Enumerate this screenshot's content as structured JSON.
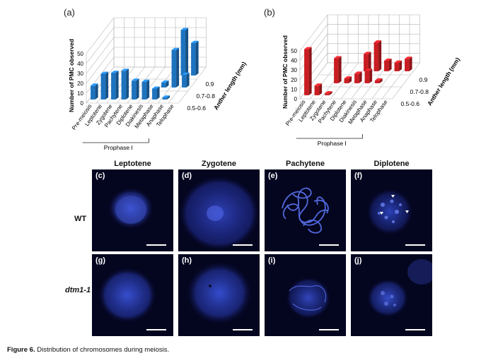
{
  "chart_data": [
    {
      "panel": "(a)",
      "type": "bar",
      "ylabel": "Number of PMC observed",
      "zlabel": "Anther length (mm)",
      "ylim": [
        0,
        50
      ],
      "yticks": [
        "0",
        "10",
        "20",
        "30",
        "40",
        "50"
      ],
      "categories": [
        "Pre-meiosis",
        "Leptotene",
        "Zygotene",
        "Pachytene",
        "Diplotene",
        "Diakinesis",
        "Metaphase",
        "Anaphase",
        "Telophase"
      ],
      "group_label": "Prophase I",
      "series": [
        {
          "name": "0.5-0.6",
          "values": [
            14,
            26,
            27,
            29,
            19,
            18,
            11,
            2,
            0
          ]
        },
        {
          "name": "0.7-0.8",
          "values": [
            0,
            0,
            0,
            0,
            0,
            0,
            5,
            38,
            13
          ]
        },
        {
          "name": "0.9",
          "values": [
            0,
            0,
            0,
            0,
            0,
            0,
            0,
            46,
            33
          ]
        }
      ]
    },
    {
      "panel": "(b)",
      "type": "bar",
      "ylabel": "Number of PMC observed",
      "zlabel": "Anther length (mm)",
      "ylim": [
        0,
        50
      ],
      "yticks": [
        "0",
        "10",
        "20",
        "30",
        "40",
        "50"
      ],
      "categories": [
        "Pre-meiosis",
        "Leptotene",
        "Zygotene",
        "Pachytene",
        "Diplotene",
        "Diakinesis",
        "Metaphase",
        "Anaphase",
        "Telophase"
      ],
      "group_label": "Prophase I",
      "series": [
        {
          "name": "0.5-0.6",
          "values": [
            48,
            10,
            2,
            0,
            0,
            0,
            0,
            0,
            0
          ]
        },
        {
          "name": "0.7-0.8",
          "values": [
            0,
            0,
            26,
            5,
            10,
            13,
            3,
            0,
            0
          ]
        },
        {
          "name": "0.9",
          "values": [
            0,
            0,
            0,
            0,
            18,
            30,
            11,
            9,
            13
          ]
        }
      ]
    }
  ],
  "micrographs": {
    "columns": [
      "Leptotene",
      "Zygotene",
      "Pachytene",
      "Diplotene"
    ],
    "rows": [
      "WT",
      "dtm1-1"
    ],
    "panels": [
      "(c)",
      "(d)",
      "(e)",
      "(f)",
      "(g)",
      "(h)",
      "(i)",
      "(j)"
    ]
  },
  "caption": {
    "label": "Figure 6.",
    "text": "Distribution of chromosomes during meiosis."
  },
  "colors": {
    "blue": "#1e73bf",
    "red": "#c91d22",
    "micro_bg": "#04051f",
    "micro_stain": "#3148d6"
  }
}
